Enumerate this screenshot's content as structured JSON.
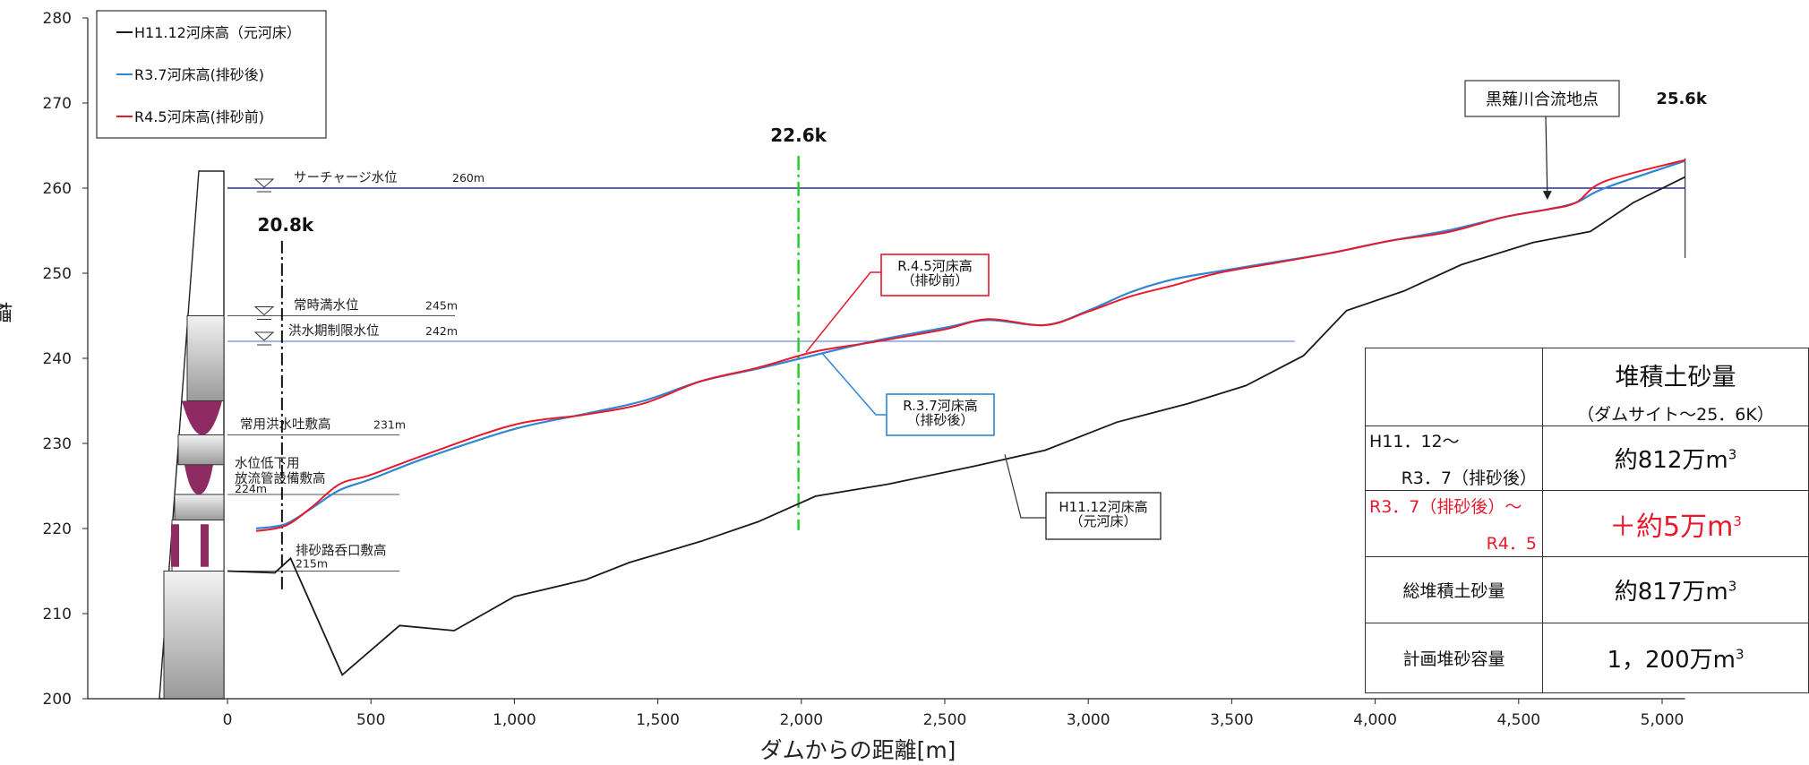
{
  "chart_data": {
    "type": "line",
    "xlabel": "ダムからの距離[m]",
    "ylabel": "標高[m]",
    "xlim": [
      -250,
      5100
    ],
    "ylim": [
      200,
      280
    ],
    "x_ticks": [
      0,
      500,
      1000,
      1500,
      2000,
      2500,
      3000,
      3500,
      4000,
      4500,
      5000
    ],
    "x_tick_labels": [
      "0",
      "500",
      "1,000",
      "1,500",
      "2,000",
      "2,500",
      "3,000",
      "3,500",
      "4,000",
      "4,500",
      "5,000"
    ],
    "y_ticks": [
      200,
      210,
      220,
      230,
      240,
      250,
      260,
      270,
      280
    ],
    "y_tick_labels": [
      "200",
      "210",
      "220",
      "230",
      "240",
      "250",
      "260",
      "270",
      "280"
    ],
    "grid": false,
    "legend_position": "top-left",
    "series": [
      {
        "name": "H11.12河床高（元河床）",
        "color": "#1a1a1a",
        "x": [
          0,
          165,
          220,
          400,
          600,
          790,
          1000,
          1250,
          1400,
          1650,
          1850,
          2050,
          2300,
          2600,
          2850,
          3100,
          3350,
          3550,
          3750,
          3900,
          4100,
          4300,
          4550,
          4750,
          4900,
          5080
        ],
        "y": [
          215,
          214.8,
          216.5,
          202.8,
          208.6,
          208,
          212,
          214,
          216,
          218.5,
          220.8,
          223.8,
          225.2,
          227.3,
          229.2,
          232.5,
          234.7,
          236.8,
          240.3,
          245.6,
          247.9,
          251,
          253.6,
          254.9,
          258.3,
          261.3
        ]
      },
      {
        "name": "R3.7河床高(排砂後)",
        "color": "#2f86d4",
        "x": [
          100,
          200,
          290,
          390,
          500,
          700,
          1000,
          1250,
          1450,
          1650,
          1850,
          2050,
          2250,
          2500,
          2650,
          2850,
          3000,
          3150,
          3300,
          3450,
          3650,
          3850,
          4050,
          4250,
          4450,
          4600,
          4700,
          4800,
          5080
        ],
        "y": [
          220,
          220.5,
          222.3,
          224.5,
          225.8,
          228.4,
          231.7,
          233.5,
          235,
          237.3,
          238.8,
          240.4,
          242,
          243.6,
          244.5,
          243.9,
          245.6,
          247.8,
          249.3,
          250.2,
          251.3,
          252.4,
          253.8,
          255,
          256.6,
          257.5,
          258.3,
          260,
          263.2
        ]
      },
      {
        "name": "R4.5河床高(排砂前)",
        "color": "#e8192c",
        "x": [
          100,
          200,
          290,
          390,
          500,
          700,
          1000,
          1250,
          1450,
          1650,
          1850,
          2050,
          2250,
          2500,
          2650,
          2850,
          3000,
          3150,
          3300,
          3450,
          3650,
          3850,
          4050,
          4250,
          4450,
          4600,
          4700,
          4800,
          5080
        ],
        "y": [
          219.7,
          220.3,
          222.4,
          225.2,
          226.3,
          228.8,
          232.2,
          233.4,
          234.7,
          237.3,
          238.9,
          240.8,
          241.9,
          243.4,
          244.6,
          243.9,
          245.5,
          247.3,
          248.6,
          250,
          251.2,
          252.4,
          253.8,
          254.8,
          256.6,
          257.5,
          258.3,
          260.8,
          263.3
        ]
      }
    ],
    "reference_lines": [
      {
        "label": "サーチャージ水位",
        "value_label": "260m",
        "y": 260,
        "color": "#2b2b9b"
      },
      {
        "label": "常時満水位",
        "value_label": "245m",
        "y": 245,
        "color": "#555555"
      },
      {
        "label": "洪水期制限水位",
        "value_label": "242m",
        "y": 242,
        "color": "#6b8fd4"
      },
      {
        "label": "常用洪水吐敷高",
        "value_label": "231m",
        "y": 231,
        "color": "#555555"
      },
      {
        "label": "水位低下用放流管設備敷高",
        "value_label": "224m",
        "y": 224,
        "color": "#555555"
      },
      {
        "label": "排砂路呑口敷高",
        "value_label": "215m",
        "y": 215,
        "color": "#555555"
      }
    ],
    "section_markers": [
      {
        "label": "20.8k",
        "x": 190,
        "color": "#111111"
      },
      {
        "label": "22.6k",
        "x": 1990,
        "color": "#22cc22"
      },
      {
        "label": "25.6k",
        "x": 5080,
        "color": "#333333"
      }
    ],
    "annotations": [
      {
        "text": "黒薙川合流地点",
        "x": 4600
      },
      {
        "text_line1": "R.4.5河床高",
        "text_line2": "（排砂前）",
        "color": "#e8192c"
      },
      {
        "text_line1": "R.3.7河床高",
        "text_line2": "（排砂後）",
        "color": "#2f86d4"
      },
      {
        "text_line1": "H11.12河床高",
        "text_line2": "（元河床）",
        "color": "#333333"
      }
    ],
    "table": {
      "header_main": "堆積土砂量",
      "header_sub": "（ダムサイト～25．6K）",
      "rows": [
        {
          "label_line1": "H11．12～",
          "label_line2": "R3．7（排砂後）",
          "value": "約812万",
          "unit": "m",
          "exp": "3",
          "highlight": false
        },
        {
          "label_line1": "R3．7（排砂後）～",
          "label_line2": "R4．5",
          "value": "＋約5万",
          "unit": "m",
          "exp": "3",
          "highlight": true
        },
        {
          "label_line1": "総堆積土砂量",
          "label_line2": "",
          "value": "約817万",
          "unit": "m",
          "exp": "3",
          "highlight": false
        },
        {
          "label_line1": "計画堆砂容量",
          "label_line2": "",
          "value": "1，200万",
          "unit": "m",
          "exp": "3",
          "highlight": false
        }
      ]
    }
  }
}
